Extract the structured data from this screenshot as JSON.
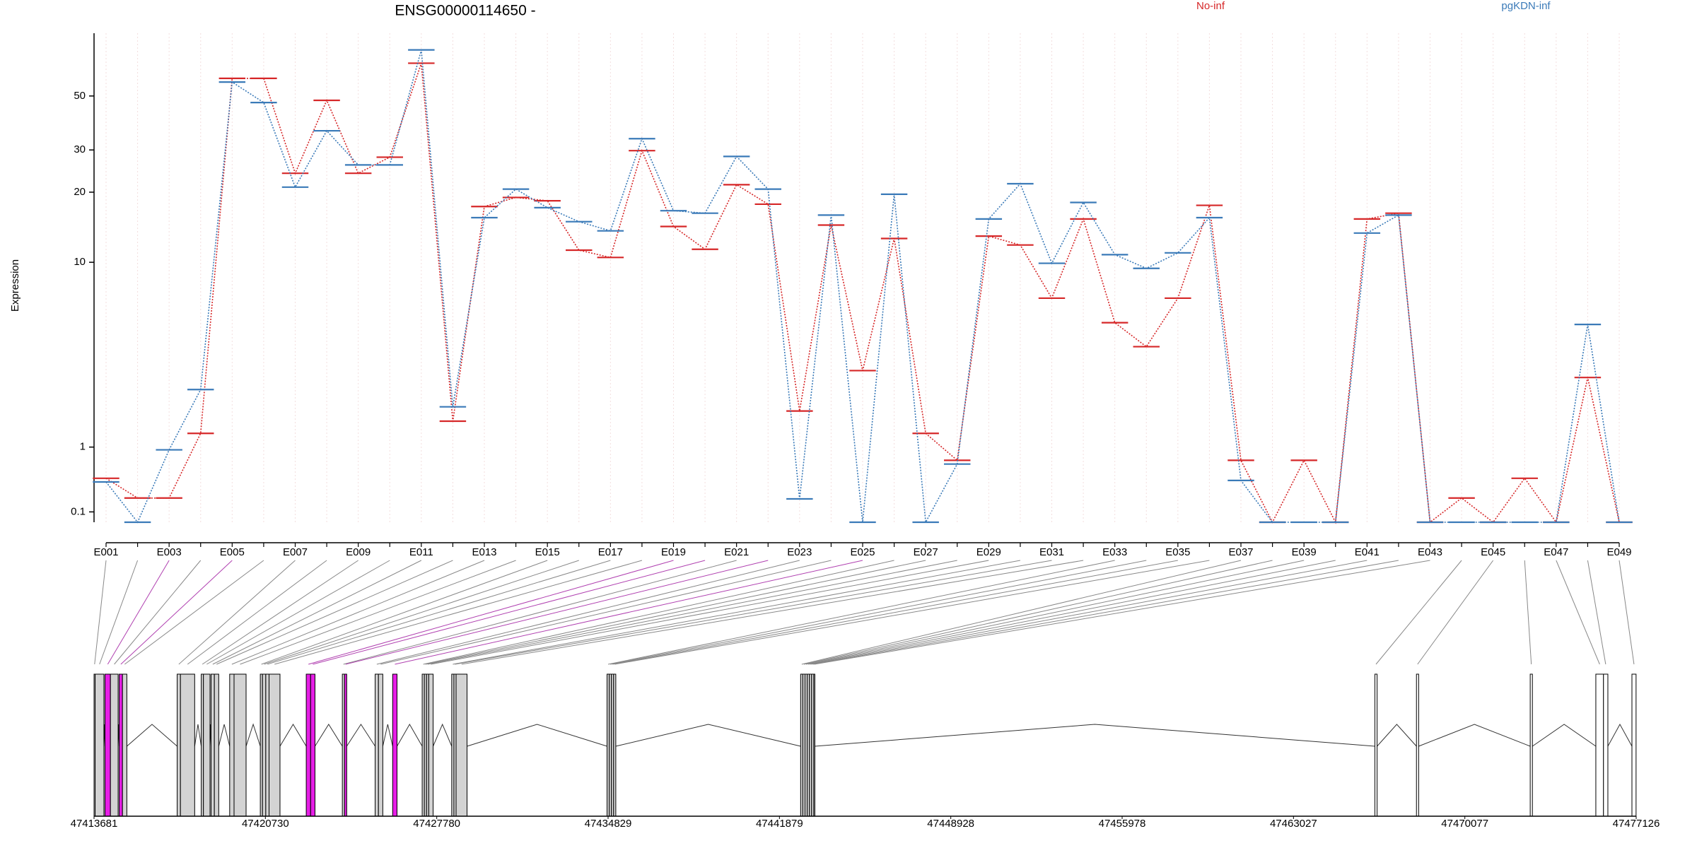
{
  "chart_data": [
    {
      "type": "line",
      "title": "ENSG00000114650 -",
      "y_label": "Expression",
      "yscale": "log1p",
      "ylim": [
        0,
        90
      ],
      "yticks": [
        0.1,
        1,
        10,
        20,
        30,
        50
      ],
      "grid": true,
      "legend": "top-right",
      "categories": [
        "E001",
        null,
        "E003",
        null,
        "E005",
        null,
        "E007",
        null,
        "E009",
        null,
        "E011",
        null,
        "E013",
        null,
        "E015",
        null,
        "E017",
        null,
        "E019",
        null,
        "E021",
        null,
        "E023",
        null,
        "E025",
        null,
        "E027",
        null,
        "E029",
        null,
        "E031",
        null,
        "E033",
        null,
        "E035",
        null,
        "E037",
        null,
        "E039",
        null,
        "E041",
        null,
        "E043",
        null,
        "E045",
        null,
        "E047",
        null,
        "E049"
      ],
      "series": [
        {
          "name": "No-inf",
          "color": "#d62728",
          "values": [
            0.5,
            0.25,
            0.25,
            1.27,
            59,
            59,
            24,
            48,
            24,
            28,
            68,
            1.54,
            17.4,
            19,
            18.4,
            11.3,
            10.5,
            29.8,
            14.3,
            11.4,
            21.5,
            17.8,
            1.79,
            14.5,
            3.05,
            12.7,
            1.27,
            0.77,
            13,
            11.9,
            6.9,
            15.4,
            5.3,
            4.05,
            6.9,
            17.6,
            0.77,
            0,
            0.77,
            0,
            15.4,
            16.3,
            0,
            0.25,
            0,
            0.5,
            0,
            2.8,
            0
          ]
        },
        {
          "name": "pgKDN-inf",
          "color": "#3a7ab8",
          "values": [
            0.45,
            0,
            0.95,
            2.4,
            57,
            47,
            21,
            36,
            26,
            26,
            77,
            1.9,
            15.6,
            20.6,
            17.2,
            15,
            13.7,
            33.4,
            16.7,
            16.3,
            28.2,
            20.6,
            0.24,
            16,
            0,
            19.6,
            0,
            0.71,
            15.4,
            21.7,
            9.9,
            18.1,
            10.8,
            9.4,
            11,
            15.6,
            0.47,
            0,
            0,
            0,
            13.4,
            16,
            0,
            0,
            0,
            0,
            0,
            5.2,
            0
          ]
        }
      ]
    },
    {
      "type": "gene_model",
      "xlim": [
        47413681,
        47477126
      ],
      "xticks": [
        47413681,
        47420730,
        47427780,
        47434829,
        47441879,
        47448928,
        47455978,
        47463027,
        47470077,
        47477126
      ],
      "exon_starts": [
        47413681,
        47413726,
        47414131,
        47414356,
        47414716,
        47414851,
        47417101,
        47417236,
        47418091,
        47418181,
        47418496,
        47418631,
        47419261,
        47419441,
        47420521,
        47420611,
        47420746,
        47420881,
        47422411,
        47422591,
        47423896,
        47423986,
        47425246,
        47425381,
        47425966,
        47427181,
        47427271,
        47427361,
        47427451,
        47428396,
        47428486,
        47428576,
        47434786,
        47434876,
        47434966,
        47435056,
        47442751,
        47442841,
        47442931,
        47443021,
        47443111,
        47443201,
        47443291,
        47466376,
        47468086,
        47472766,
        47475466,
        47475781,
        47476951
      ],
      "exon_ends": [
        47413726,
        47414086,
        47414356,
        47414671,
        47414851,
        47415031,
        47417236,
        47417821,
        47418181,
        47418451,
        47418631,
        47418811,
        47419441,
        47419936,
        47420611,
        47420746,
        47420881,
        47421331,
        47422591,
        47422771,
        47423986,
        47424076,
        47425381,
        47425561,
        47426146,
        47427271,
        47427361,
        47427451,
        47427631,
        47428486,
        47428576,
        47429026,
        47434876,
        47434966,
        47435056,
        47435146,
        47442841,
        47442931,
        47443021,
        47443111,
        47443201,
        47443291,
        47443336,
        47466466,
        47468176,
        47472856,
        47475781,
        47475961,
        47477121
      ],
      "exon_colors": [
        "#d3d3d3",
        "#d3d3d3",
        "#e61ee6",
        "#d3d3d3",
        "#e61ee6",
        "#d3d3d3",
        "#d3d3d3",
        "#d3d3d3",
        "#d3d3d3",
        "#d3d3d3",
        "#d3d3d3",
        "#d3d3d3",
        "#d3d3d3",
        "#d3d3d3",
        "#d3d3d3",
        "#d3d3d3",
        "#d3d3d3",
        "#d3d3d3",
        "#e61ee6",
        "#e61ee6",
        "#d3d3d3",
        "#e61ee6",
        "#d3d3d3",
        "#d3d3d3",
        "#e61ee6",
        "#d3d3d3",
        "#d3d3d3",
        "#d3d3d3",
        "#d3d3d3",
        "#d3d3d3",
        "#d3d3d3",
        "#d3d3d3",
        "#d3d3d3",
        "#d3d3d3",
        "#d3d3d3",
        "#d3d3d3",
        "#d3d3d3",
        "#d3d3d3",
        "#d3d3d3",
        "#d3d3d3",
        "#d3d3d3",
        "#d3d3d3",
        "#d3d3d3",
        "#ffffff",
        "#ffffff",
        "#ffffff",
        "#ffffff",
        "#ffffff",
        "#ffffff"
      ]
    }
  ]
}
